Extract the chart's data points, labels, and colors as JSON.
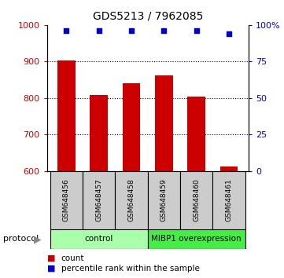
{
  "title": "GDS5213 / 7962085",
  "samples": [
    "GSM648456",
    "GSM648457",
    "GSM648458",
    "GSM648459",
    "GSM648460",
    "GSM648461"
  ],
  "counts": [
    902,
    808,
    840,
    862,
    804,
    612
  ],
  "percentile_ranks": [
    96,
    96,
    96,
    96,
    96,
    94
  ],
  "ylim_left": [
    600,
    1000
  ],
  "ylim_right": [
    0,
    100
  ],
  "yticks_left": [
    600,
    700,
    800,
    900,
    1000
  ],
  "yticks_right": [
    0,
    25,
    50,
    75,
    100
  ],
  "ytick_labels_right": [
    "0",
    "25",
    "50",
    "75",
    "100%"
  ],
  "bar_color": "#cc0000",
  "dot_color": "#0000cc",
  "grid_color": "#000000",
  "bg_color": "#ffffff",
  "protocol_groups": [
    {
      "label": "control",
      "start": 0,
      "end": 3,
      "color": "#aaffaa"
    },
    {
      "label": "MIBP1 overexpression",
      "start": 3,
      "end": 6,
      "color": "#44ee44"
    }
  ],
  "sample_bg_color": "#cccccc",
  "legend_count_color": "#cc0000",
  "legend_pct_color": "#0000cc",
  "ylabel_left_color": "#cc0000",
  "ylabel_right_color": "#0000cc"
}
